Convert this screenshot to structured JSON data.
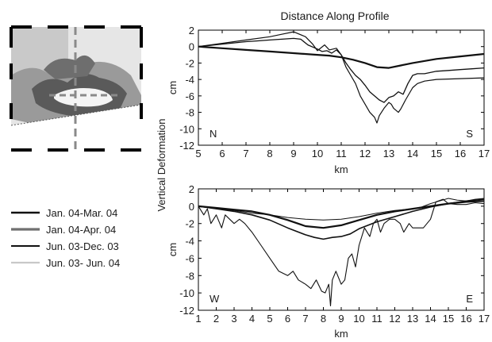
{
  "figure": {
    "title": "Distance Along Profile",
    "shared_ylabel": "Vertical Deformation"
  },
  "legend": [
    {
      "label": "Jan. 04-Mar. 04",
      "color": "#111111",
      "width": 2.6
    },
    {
      "label": "Jan. 04-Apr. 04",
      "color": "#707070",
      "width": 3.2
    },
    {
      "label": "Jun. 03-Dec. 03",
      "color": "#111111",
      "width": 2.0
    },
    {
      "label": "Jun. 03- Jun. 04",
      "color": "#c8c8c8",
      "width": 2.2
    }
  ],
  "chart_data": [
    {
      "type": "line",
      "xlabel": "km",
      "ylabel": "cm",
      "xlim": [
        5,
        17
      ],
      "ylim": [
        -12,
        2
      ],
      "xticks": [
        5,
        6,
        7,
        8,
        9,
        10,
        11,
        12,
        13,
        14,
        15,
        16,
        17
      ],
      "yticks": [
        2,
        0,
        -2,
        -4,
        -6,
        -8,
        -10,
        -12
      ],
      "direction_labels": {
        "left": "N",
        "right": "S"
      },
      "series": [
        {
          "color": "#111111",
          "width": 2.2,
          "x": [
            5,
            6,
            7,
            8,
            9,
            10,
            10.5,
            11,
            11.5,
            12,
            12.5,
            13,
            13.5,
            14,
            15,
            16,
            17
          ],
          "y": [
            0,
            -0.2,
            -0.4,
            -0.6,
            -0.8,
            -1.0,
            -1.1,
            -1.3,
            -1.6,
            -2.0,
            -2.5,
            -2.6,
            -2.3,
            -2.0,
            -1.5,
            -1.2,
            -0.9
          ]
        },
        {
          "color": "#111111",
          "width": 1.3,
          "x": [
            5,
            6,
            7,
            7.5,
            8,
            8.5,
            9,
            9.3,
            9.6,
            10,
            10.2,
            10.4,
            10.6,
            10.8,
            11,
            11.2,
            11.4,
            11.6,
            11.8,
            12,
            12.2,
            12.4,
            12.6,
            12.8,
            13,
            13.2,
            13.4,
            13.6,
            13.8,
            14,
            14.2,
            14.5,
            15,
            15.5,
            16,
            16.5,
            17
          ],
          "y": [
            0,
            0.3,
            0.6,
            0.7,
            0.8,
            0.9,
            1.0,
            0.9,
            0.2,
            -0.3,
            -0.6,
            -0.5,
            -0.8,
            -0.4,
            -1.0,
            -2.0,
            -2.8,
            -3.5,
            -4.0,
            -4.7,
            -5.5,
            -6.0,
            -6.5,
            -6.8,
            -6.2,
            -6.0,
            -5.5,
            -5.8,
            -4.5,
            -3.5,
            -3.3,
            -3.3,
            -3.0,
            -2.9,
            -2.8,
            -2.7,
            -2.6
          ]
        },
        {
          "color": "#111111",
          "width": 1.2,
          "x": [
            5,
            6,
            7,
            8,
            8.5,
            9,
            9.5,
            9.8,
            10,
            10.3,
            10.5,
            10.8,
            11,
            11.2,
            11.4,
            11.6,
            11.8,
            12,
            12.2,
            12.4,
            12.5,
            12.6,
            12.8,
            13,
            13.1,
            13.2,
            13.4,
            13.5,
            13.7,
            14,
            14.2,
            14.5,
            15,
            16,
            17
          ],
          "y": [
            0,
            0.4,
            0.8,
            1.2,
            1.5,
            1.8,
            1.2,
            0.3,
            -0.5,
            0.2,
            -0.4,
            -0.2,
            -1.0,
            -2.5,
            -3.5,
            -4.5,
            -6.0,
            -7.0,
            -8.0,
            -8.6,
            -9.3,
            -8.4,
            -7.5,
            -6.8,
            -7.0,
            -7.5,
            -8.0,
            -7.6,
            -6.5,
            -5.0,
            -4.5,
            -4.2,
            -4.0,
            -3.9,
            -3.8
          ]
        }
      ]
    },
    {
      "type": "line",
      "xlabel": "km",
      "ylabel": "cm",
      "xlim": [
        1,
        17
      ],
      "ylim": [
        -12,
        2
      ],
      "xticks": [
        1,
        2,
        3,
        4,
        5,
        6,
        7,
        8,
        9,
        10,
        11,
        12,
        13,
        14,
        15,
        16,
        17
      ],
      "yticks": [
        2,
        0,
        -2,
        -4,
        -6,
        -8,
        -10,
        -12
      ],
      "direction_labels": {
        "left": "W",
        "right": "E"
      },
      "series": [
        {
          "color": "#111111",
          "width": 2.2,
          "x": [
            1,
            2,
            3,
            4,
            5,
            6,
            7,
            8,
            9,
            10,
            11,
            12,
            13,
            14,
            15,
            16,
            17
          ],
          "y": [
            0,
            -0.2,
            -0.4,
            -0.6,
            -1.0,
            -1.6,
            -2.3,
            -2.5,
            -2.2,
            -1.6,
            -1.0,
            -0.6,
            -0.3,
            0.0,
            0.3,
            0.5,
            0.6
          ]
        },
        {
          "color": "#111111",
          "width": 1.6,
          "x": [
            1,
            2,
            3,
            4,
            5,
            6,
            7,
            7.5,
            8,
            8.5,
            9,
            9.5,
            10,
            11,
            12,
            13,
            14,
            15,
            16,
            17
          ],
          "y": [
            0,
            -0.3,
            -0.6,
            -1.0,
            -1.6,
            -2.5,
            -3.3,
            -3.6,
            -3.8,
            -3.6,
            -3.5,
            -3.2,
            -2.6,
            -1.8,
            -1.2,
            -0.6,
            -0.1,
            0.3,
            0.6,
            0.8
          ]
        },
        {
          "color": "#111111",
          "width": 1.1,
          "x": [
            1,
            1.3,
            1.5,
            1.7,
            2,
            2.3,
            2.5,
            2.8,
            3,
            3.3,
            3.6,
            4,
            4.5,
            5,
            5.5,
            6,
            6.3,
            6.6,
            7,
            7.3,
            7.6,
            7.9,
            8.1,
            8.3,
            8.4,
            8.5,
            8.7,
            9,
            9.2,
            9.4,
            9.6,
            9.8,
            10,
            10.3,
            10.6,
            10.8,
            11,
            11.2,
            11.4,
            11.7,
            12,
            12.3,
            12.5,
            12.8,
            13,
            13.3,
            13.6,
            14,
            14.3,
            14.7,
            15,
            15.5,
            16,
            16.5,
            17
          ],
          "y": [
            0,
            -1.0,
            -0.3,
            -2.0,
            -1.0,
            -2.5,
            -1.0,
            -1.6,
            -2.0,
            -1.5,
            -2.0,
            -3.0,
            -4.5,
            -6.0,
            -7.5,
            -8.0,
            -7.5,
            -8.5,
            -9.0,
            -9.5,
            -8.5,
            -9.8,
            -10.0,
            -9.0,
            -11.5,
            -8.5,
            -7.5,
            -9.0,
            -8.5,
            -6.0,
            -5.5,
            -7.0,
            -4.5,
            -2.5,
            -3.5,
            -2.0,
            -1.5,
            -3.0,
            -2.0,
            -1.5,
            -1.5,
            -2.0,
            -3.0,
            -2.0,
            -2.5,
            -2.5,
            -2.5,
            -1.5,
            0.5,
            0.8,
            0.3,
            0.2,
            0.2,
            0.4,
            0.3
          ]
        },
        {
          "color": "#111111",
          "width": 1.0,
          "x": [
            1,
            2,
            3,
            4,
            5,
            6,
            7,
            8,
            9,
            10,
            11,
            12,
            13,
            13.5,
            14,
            14.5,
            15,
            15.5,
            16,
            16.5,
            17
          ],
          "y": [
            0,
            -0.3,
            -0.5,
            -0.8,
            -1.0,
            -1.3,
            -1.5,
            -1.6,
            -1.5,
            -1.2,
            -0.8,
            -0.5,
            -0.3,
            -0.1,
            0.3,
            0.6,
            0.9,
            0.7,
            0.6,
            0.8,
            0.9
          ]
        }
      ]
    }
  ]
}
